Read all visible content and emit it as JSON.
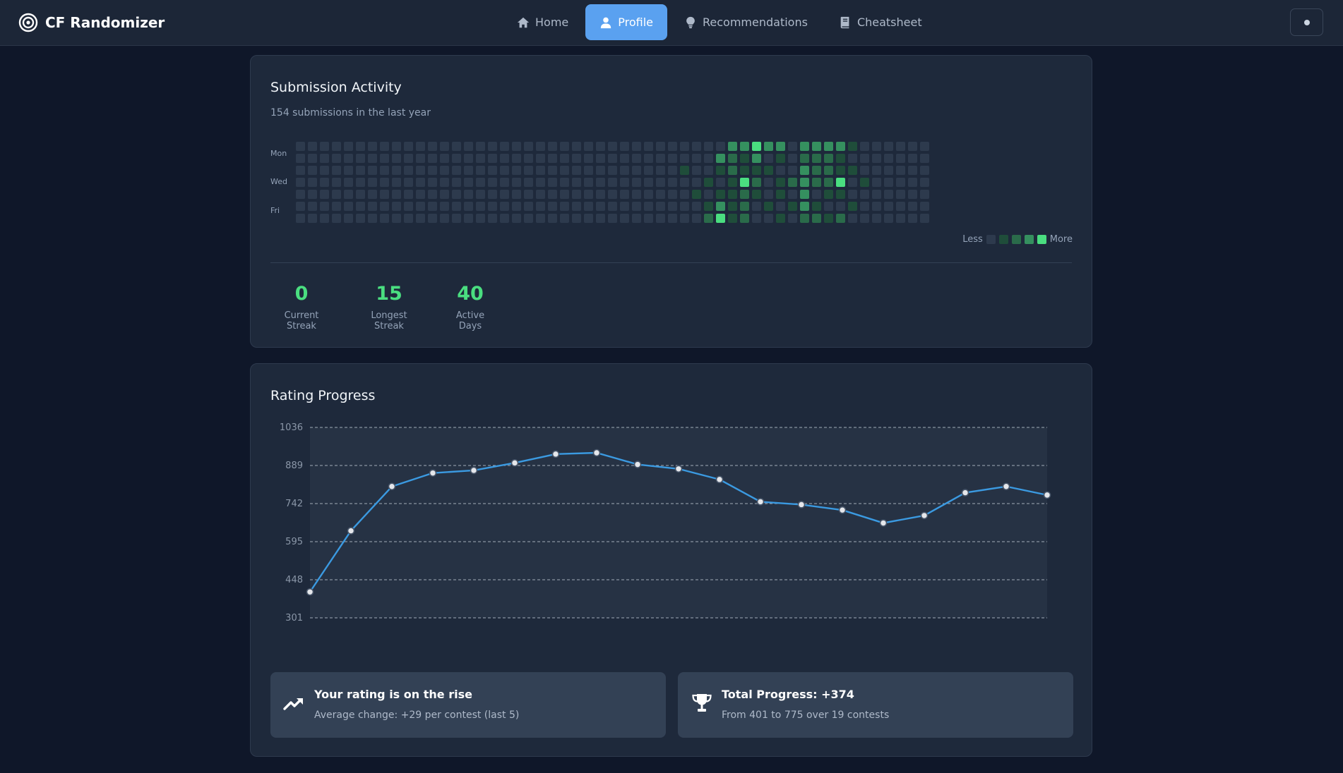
{
  "app": {
    "title": "CF Randomizer"
  },
  "nav": {
    "items": [
      {
        "label": "Home",
        "icon": "home-icon"
      },
      {
        "label": "Profile",
        "icon": "user-icon",
        "active": true
      },
      {
        "label": "Recommendations",
        "icon": "lightbulb-icon"
      },
      {
        "label": "Cheatsheet",
        "icon": "book-icon"
      }
    ]
  },
  "activity": {
    "title": "Submission Activity",
    "subtitle": "154 submissions in the last year",
    "day_labels": [
      "Mon",
      "Wed",
      "Fri"
    ],
    "legend_less": "Less",
    "legend_more": "More",
    "colors": [
      "#2d3a4d",
      "#1f4d3a",
      "#2a6b4a",
      "#35905f",
      "#4ade80"
    ],
    "weeks": 53,
    "active_cells": [
      [
        34,
        6,
        2
      ],
      [
        36,
        2,
        2
      ],
      [
        37,
        7,
        1
      ],
      [
        38,
        4,
        1
      ],
      [
        41,
        7,
        1
      ],
      [
        42,
        5,
        1
      ],
      [
        35,
        6,
        4
      ],
      [
        36,
        1,
        2
      ],
      [
        36,
        7,
        1
      ],
      [
        37,
        3,
        1
      ],
      [
        35,
        7,
        2
      ],
      [
        36,
        6,
        1
      ],
      [
        35,
        2,
        1
      ],
      [
        35,
        5,
        3
      ],
      [
        36,
        4,
        1
      ],
      [
        35,
        1,
        3
      ],
      [
        35,
        4,
        1
      ],
      [
        35,
        7,
        1
      ],
      [
        36,
        3,
        1
      ],
      [
        36,
        5,
        1
      ],
      [
        37,
        2,
        1
      ],
      [
        37,
        6,
        1
      ],
      [
        36,
        0,
        3
      ],
      [
        37,
        1,
        1
      ],
      [
        37,
        4,
        2
      ],
      [
        37,
        7,
        1
      ],
      [
        37,
        0,
        3
      ],
      [
        37,
        3,
        4
      ],
      [
        37,
        5,
        2
      ],
      [
        37,
        6,
        2
      ],
      [
        38,
        2,
        1
      ],
      [
        38,
        0,
        5
      ],
      [
        38,
        1,
        3
      ],
      [
        38,
        3,
        2
      ],
      [
        38,
        4,
        1
      ],
      [
        39,
        0,
        3
      ],
      [
        39,
        2,
        1
      ],
      [
        39,
        5,
        1
      ],
      [
        39,
        7,
        1
      ],
      [
        40,
        0,
        3
      ],
      [
        40,
        1,
        1
      ],
      [
        40,
        6,
        1
      ],
      [
        40,
        3,
        1
      ],
      [
        40,
        4,
        1
      ],
      [
        41,
        3,
        2
      ],
      [
        41,
        5,
        1
      ],
      [
        42,
        0,
        3
      ],
      [
        42,
        1,
        2
      ],
      [
        42,
        2,
        3
      ],
      [
        42,
        3,
        3
      ],
      [
        42,
        4,
        3
      ],
      [
        42,
        5,
        3
      ],
      [
        42,
        6,
        2
      ],
      [
        42,
        7,
        1
      ],
      [
        43,
        0,
        3
      ],
      [
        43,
        1,
        2
      ],
      [
        43,
        2,
        2
      ],
      [
        43,
        3,
        2
      ],
      [
        43,
        5,
        1
      ],
      [
        43,
        6,
        2
      ],
      [
        44,
        0,
        3
      ],
      [
        44,
        1,
        2
      ],
      [
        44,
        2,
        2
      ],
      [
        44,
        3,
        2
      ],
      [
        44,
        4,
        1
      ],
      [
        44,
        6,
        1
      ],
      [
        44,
        7,
        1
      ],
      [
        45,
        0,
        3
      ],
      [
        45,
        1,
        1
      ],
      [
        45,
        2,
        1
      ],
      [
        45,
        3,
        5
      ],
      [
        45,
        4,
        1
      ],
      [
        45,
        6,
        2
      ],
      [
        46,
        0,
        1
      ],
      [
        46,
        2,
        1
      ],
      [
        46,
        5,
        1
      ],
      [
        47,
        3,
        1
      ],
      [
        33,
        7,
        5
      ],
      [
        32,
        2,
        1
      ],
      [
        34,
        3,
        1
      ],
      [
        34,
        5,
        1
      ],
      [
        33,
        4,
        1
      ]
    ]
  },
  "stats": [
    {
      "value": "0",
      "label": "Current Streak"
    },
    {
      "value": "15",
      "label": "Longest Streak"
    },
    {
      "value": "40",
      "label": "Active Days"
    }
  ],
  "rating": {
    "title": "Rating Progress",
    "chart_data": {
      "type": "line",
      "title": "Rating Progress",
      "xlabel": "",
      "ylabel": "",
      "ylim": [
        301,
        1036
      ],
      "yticks": [
        1036,
        889,
        742,
        595,
        448,
        301
      ],
      "grid": true,
      "series": [
        {
          "values": [
            401,
            637,
            808,
            860,
            870,
            899,
            933,
            938,
            893,
            876,
            835,
            749,
            738,
            717,
            667,
            696,
            784,
            808,
            775
          ]
        }
      ],
      "line_color": "#3b9ae1"
    },
    "insights": [
      {
        "icon": "trending-up-icon",
        "title": "Your rating is on the rise",
        "subtitle": "Average change: +29 per contest (last 5)"
      },
      {
        "icon": "trophy-icon",
        "title": "Total Progress: +374",
        "subtitle": "From 401 to 775 over 19 contests"
      }
    ]
  }
}
